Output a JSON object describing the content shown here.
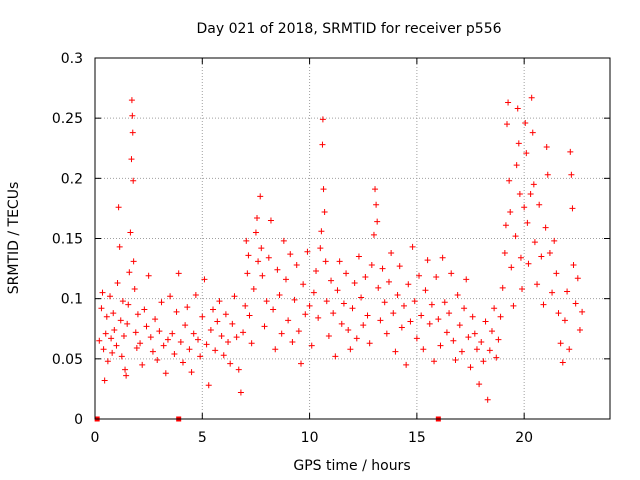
{
  "chart_data": {
    "type": "scatter",
    "title": "Day 021 of 2018, SRMTID for receiver p556",
    "xlabel": "GPS time / hours",
    "ylabel": "SRMTID / TECUs",
    "xlim": [
      0,
      24
    ],
    "ylim": [
      0,
      0.3
    ],
    "xticks": [
      0,
      5,
      10,
      15,
      20
    ],
    "yticks": [
      0,
      0.05,
      0.1,
      0.15,
      0.2,
      0.25,
      0.3
    ],
    "xtick_labels": [
      "0",
      "5",
      "10",
      "15",
      "20"
    ],
    "ytick_labels": [
      "0",
      "0.05",
      "0.1",
      "0.15",
      "0.2",
      "0.25",
      "0.3"
    ],
    "grid": true,
    "marker": "+",
    "color": "#ff0000",
    "zero_points": [
      0.1,
      3.9,
      16.0
    ],
    "series": [
      {
        "name": "SRMTID",
        "points": [
          [
            0.2,
            0.065
          ],
          [
            0.3,
            0.092
          ],
          [
            0.35,
            0.105
          ],
          [
            0.4,
            0.058
          ],
          [
            0.45,
            0.032
          ],
          [
            0.5,
            0.071
          ],
          [
            0.55,
            0.085
          ],
          [
            0.6,
            0.048
          ],
          [
            0.7,
            0.102
          ],
          [
            0.75,
            0.067
          ],
          [
            0.8,
            0.055
          ],
          [
            0.85,
            0.088
          ],
          [
            0.9,
            0.074
          ],
          [
            1.0,
            0.061
          ],
          [
            1.05,
            0.113
          ],
          [
            1.1,
            0.176
          ],
          [
            1.15,
            0.143
          ],
          [
            1.2,
            0.082
          ],
          [
            1.25,
            0.052
          ],
          [
            1.3,
            0.098
          ],
          [
            1.35,
            0.069
          ],
          [
            1.4,
            0.041
          ],
          [
            1.45,
            0.036
          ],
          [
            1.5,
            0.079
          ],
          [
            1.55,
            0.095
          ],
          [
            1.6,
            0.122
          ],
          [
            1.65,
            0.155
          ],
          [
            1.7,
            0.216
          ],
          [
            1.72,
            0.265
          ],
          [
            1.74,
            0.252
          ],
          [
            1.76,
            0.238
          ],
          [
            1.78,
            0.198
          ],
          [
            1.8,
            0.131
          ],
          [
            1.85,
            0.108
          ],
          [
            1.9,
            0.072
          ],
          [
            1.95,
            0.059
          ],
          [
            2.0,
            0.087
          ],
          [
            2.1,
            0.063
          ],
          [
            2.2,
            0.045
          ],
          [
            2.3,
            0.091
          ],
          [
            2.4,
            0.077
          ],
          [
            2.5,
            0.119
          ],
          [
            2.6,
            0.068
          ],
          [
            2.7,
            0.056
          ],
          [
            2.8,
            0.083
          ],
          [
            2.9,
            0.049
          ],
          [
            3.0,
            0.073
          ],
          [
            3.1,
            0.097
          ],
          [
            3.2,
            0.061
          ],
          [
            3.3,
            0.038
          ],
          [
            3.4,
            0.066
          ],
          [
            3.5,
            0.102
          ],
          [
            3.6,
            0.071
          ],
          [
            3.7,
            0.054
          ],
          [
            3.8,
            0.089
          ],
          [
            3.9,
            0.121
          ],
          [
            4.0,
            0.064
          ],
          [
            4.1,
            0.047
          ],
          [
            4.2,
            0.078
          ],
          [
            4.3,
            0.093
          ],
          [
            4.4,
            0.058
          ],
          [
            4.5,
            0.039
          ],
          [
            4.6,
            0.071
          ],
          [
            4.7,
            0.103
          ],
          [
            4.8,
            0.066
          ],
          [
            4.9,
            0.052
          ],
          [
            5.0,
            0.085
          ],
          [
            5.1,
            0.116
          ],
          [
            5.2,
            0.062
          ],
          [
            5.3,
            0.028
          ],
          [
            5.4,
            0.074
          ],
          [
            5.5,
            0.091
          ],
          [
            5.6,
            0.057
          ],
          [
            5.7,
            0.081
          ],
          [
            5.8,
            0.098
          ],
          [
            5.9,
            0.069
          ],
          [
            6.0,
            0.053
          ],
          [
            6.1,
            0.087
          ],
          [
            6.2,
            0.064
          ],
          [
            6.3,
            0.046
          ],
          [
            6.4,
            0.079
          ],
          [
            6.5,
            0.102
          ],
          [
            6.6,
            0.068
          ],
          [
            6.7,
            0.041
          ],
          [
            6.8,
            0.022
          ],
          [
            6.9,
            0.072
          ],
          [
            7.0,
            0.094
          ],
          [
            7.05,
            0.148
          ],
          [
            7.1,
            0.121
          ],
          [
            7.15,
            0.136
          ],
          [
            7.2,
            0.086
          ],
          [
            7.3,
            0.063
          ],
          [
            7.4,
            0.108
          ],
          [
            7.5,
            0.155
          ],
          [
            7.55,
            0.167
          ],
          [
            7.6,
            0.131
          ],
          [
            7.7,
            0.185
          ],
          [
            7.75,
            0.142
          ],
          [
            7.8,
            0.119
          ],
          [
            7.9,
            0.077
          ],
          [
            8.0,
            0.098
          ],
          [
            8.1,
            0.134
          ],
          [
            8.2,
            0.165
          ],
          [
            8.3,
            0.091
          ],
          [
            8.4,
            0.058
          ],
          [
            8.5,
            0.124
          ],
          [
            8.6,
            0.103
          ],
          [
            8.7,
            0.071
          ],
          [
            8.8,
            0.148
          ],
          [
            8.9,
            0.116
          ],
          [
            9.0,
            0.082
          ],
          [
            9.1,
            0.137
          ],
          [
            9.2,
            0.064
          ],
          [
            9.3,
            0.099
          ],
          [
            9.4,
            0.128
          ],
          [
            9.5,
            0.073
          ],
          [
            9.6,
            0.046
          ],
          [
            9.7,
            0.112
          ],
          [
            9.8,
            0.087
          ],
          [
            9.9,
            0.139
          ],
          [
            10.0,
            0.094
          ],
          [
            10.1,
            0.061
          ],
          [
            10.2,
            0.105
          ],
          [
            10.3,
            0.123
          ],
          [
            10.4,
            0.084
          ],
          [
            10.5,
            0.142
          ],
          [
            10.55,
            0.156
          ],
          [
            10.6,
            0.228
          ],
          [
            10.62,
            0.249
          ],
          [
            10.65,
            0.191
          ],
          [
            10.7,
            0.172
          ],
          [
            10.75,
            0.131
          ],
          [
            10.8,
            0.098
          ],
          [
            10.9,
            0.069
          ],
          [
            11.0,
            0.115
          ],
          [
            11.1,
            0.088
          ],
          [
            11.2,
            0.052
          ],
          [
            11.3,
            0.107
          ],
          [
            11.4,
            0.131
          ],
          [
            11.5,
            0.079
          ],
          [
            11.6,
            0.096
          ],
          [
            11.7,
            0.121
          ],
          [
            11.8,
            0.074
          ],
          [
            11.9,
            0.058
          ],
          [
            12.0,
            0.092
          ],
          [
            12.1,
            0.113
          ],
          [
            12.2,
            0.067
          ],
          [
            12.3,
            0.135
          ],
          [
            12.4,
            0.101
          ],
          [
            12.5,
            0.078
          ],
          [
            12.6,
            0.118
          ],
          [
            12.7,
            0.086
          ],
          [
            12.8,
            0.063
          ],
          [
            12.9,
            0.128
          ],
          [
            13.0,
            0.153
          ],
          [
            13.05,
            0.191
          ],
          [
            13.1,
            0.178
          ],
          [
            13.15,
            0.164
          ],
          [
            13.2,
            0.109
          ],
          [
            13.3,
            0.082
          ],
          [
            13.4,
            0.125
          ],
          [
            13.5,
            0.097
          ],
          [
            13.6,
            0.071
          ],
          [
            13.7,
            0.114
          ],
          [
            13.8,
            0.138
          ],
          [
            13.9,
            0.088
          ],
          [
            14.0,
            0.056
          ],
          [
            14.1,
            0.103
          ],
          [
            14.2,
            0.127
          ],
          [
            14.3,
            0.076
          ],
          [
            14.4,
            0.094
          ],
          [
            14.5,
            0.045
          ],
          [
            14.6,
            0.112
          ],
          [
            14.7,
            0.081
          ],
          [
            14.8,
            0.143
          ],
          [
            14.9,
            0.098
          ],
          [
            15.0,
            0.067
          ],
          [
            15.1,
            0.119
          ],
          [
            15.2,
            0.086
          ],
          [
            15.3,
            0.058
          ],
          [
            15.4,
            0.107
          ],
          [
            15.5,
            0.132
          ],
          [
            15.6,
            0.079
          ],
          [
            15.7,
            0.095
          ],
          [
            15.8,
            0.048
          ],
          [
            15.9,
            0.118
          ],
          [
            16.0,
            0.083
          ],
          [
            16.1,
            0.061
          ],
          [
            16.2,
            0.134
          ],
          [
            16.3,
            0.097
          ],
          [
            16.4,
            0.072
          ],
          [
            16.5,
            0.088
          ],
          [
            16.6,
            0.121
          ],
          [
            16.7,
            0.065
          ],
          [
            16.8,
            0.049
          ],
          [
            16.9,
            0.103
          ],
          [
            17.0,
            0.078
          ],
          [
            17.1,
            0.056
          ],
          [
            17.2,
            0.092
          ],
          [
            17.3,
            0.116
          ],
          [
            17.4,
            0.068
          ],
          [
            17.5,
            0.043
          ],
          [
            17.6,
            0.085
          ],
          [
            17.7,
            0.071
          ],
          [
            17.8,
            0.058
          ],
          [
            17.9,
            0.029
          ],
          [
            18.0,
            0.064
          ],
          [
            18.1,
            0.048
          ],
          [
            18.2,
            0.081
          ],
          [
            18.3,
            0.016
          ],
          [
            18.4,
            0.057
          ],
          [
            18.5,
            0.073
          ],
          [
            18.6,
            0.092
          ],
          [
            18.7,
            0.051
          ],
          [
            18.8,
            0.066
          ],
          [
            18.9,
            0.085
          ],
          [
            19.0,
            0.109
          ],
          [
            19.1,
            0.138
          ],
          [
            19.15,
            0.161
          ],
          [
            19.2,
            0.245
          ],
          [
            19.25,
            0.263
          ],
          [
            19.3,
            0.198
          ],
          [
            19.35,
            0.172
          ],
          [
            19.4,
            0.126
          ],
          [
            19.5,
            0.094
          ],
          [
            19.6,
            0.152
          ],
          [
            19.65,
            0.211
          ],
          [
            19.7,
            0.258
          ],
          [
            19.75,
            0.229
          ],
          [
            19.8,
            0.187
          ],
          [
            19.85,
            0.134
          ],
          [
            19.9,
            0.108
          ],
          [
            20.0,
            0.176
          ],
          [
            20.05,
            0.246
          ],
          [
            20.1,
            0.221
          ],
          [
            20.15,
            0.163
          ],
          [
            20.2,
            0.129
          ],
          [
            20.3,
            0.187
          ],
          [
            20.35,
            0.267
          ],
          [
            20.4,
            0.238
          ],
          [
            20.45,
            0.195
          ],
          [
            20.5,
            0.147
          ],
          [
            20.6,
            0.112
          ],
          [
            20.7,
            0.178
          ],
          [
            20.8,
            0.135
          ],
          [
            20.9,
            0.095
          ],
          [
            21.0,
            0.159
          ],
          [
            21.05,
            0.226
          ],
          [
            21.1,
            0.203
          ],
          [
            21.2,
            0.138
          ],
          [
            21.3,
            0.105
          ],
          [
            21.4,
            0.148
          ],
          [
            21.5,
            0.121
          ],
          [
            21.6,
            0.088
          ],
          [
            21.7,
            0.063
          ],
          [
            21.8,
            0.047
          ],
          [
            21.9,
            0.082
          ],
          [
            22.0,
            0.106
          ],
          [
            22.1,
            0.058
          ],
          [
            22.15,
            0.222
          ],
          [
            22.2,
            0.203
          ],
          [
            22.25,
            0.175
          ],
          [
            22.3,
            0.128
          ],
          [
            22.4,
            0.096
          ],
          [
            22.5,
            0.117
          ],
          [
            22.6,
            0.074
          ],
          [
            22.7,
            0.089
          ]
        ]
      }
    ]
  }
}
